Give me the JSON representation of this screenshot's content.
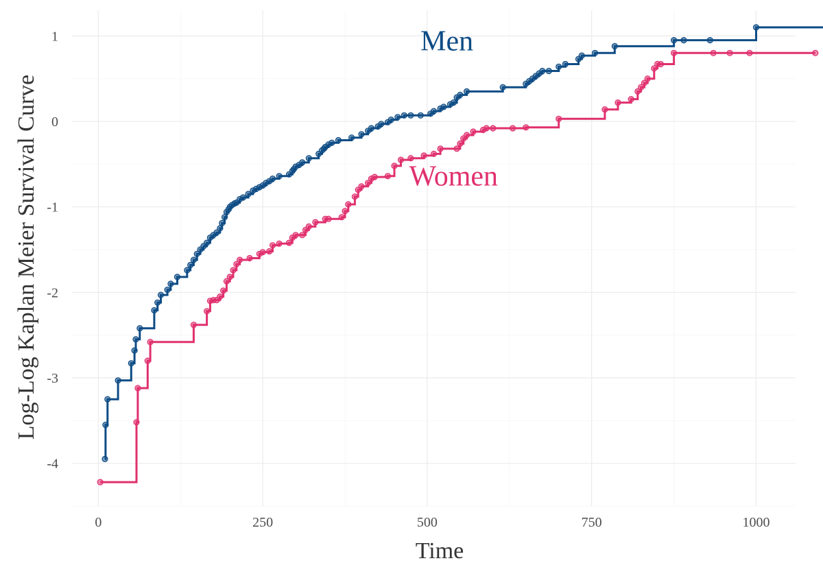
{
  "chart_data": {
    "type": "line",
    "step": true,
    "xlabel": "Time",
    "ylabel": "Log-Log Kaplan Meier Survival Curve",
    "xlim": [
      -40,
      1060
    ],
    "ylim": [
      -4.5,
      1.3
    ],
    "x_ticks": [
      0,
      250,
      500,
      750,
      1000
    ],
    "y_ticks": [
      -4,
      -3,
      -2,
      -1,
      0,
      1
    ],
    "grid": true,
    "legend": "none (series labelled directly on plot)",
    "series": [
      {
        "name": "Men",
        "color": "#0e4c85",
        "label_at": [
          530,
          0.83
        ],
        "points": [
          [
            10,
            -3.95
          ],
          [
            11,
            -3.55
          ],
          [
            14,
            -3.25
          ],
          [
            30,
            -3.03
          ],
          [
            50,
            -2.83
          ],
          [
            55,
            -2.68
          ],
          [
            57,
            -2.55
          ],
          [
            63,
            -2.42
          ],
          [
            85,
            -2.21
          ],
          [
            90,
            -2.12
          ],
          [
            95,
            -2.03
          ],
          [
            105,
            -1.97
          ],
          [
            110,
            -1.9
          ],
          [
            120,
            -1.82
          ],
          [
            135,
            -1.74
          ],
          [
            140,
            -1.68
          ],
          [
            145,
            -1.62
          ],
          [
            150,
            -1.55
          ],
          [
            155,
            -1.5
          ],
          [
            160,
            -1.46
          ],
          [
            165,
            -1.42
          ],
          [
            170,
            -1.36
          ],
          [
            175,
            -1.33
          ],
          [
            180,
            -1.3
          ],
          [
            185,
            -1.25
          ],
          [
            188,
            -1.19
          ],
          [
            192,
            -1.12
          ],
          [
            195,
            -1.06
          ],
          [
            198,
            -1.03
          ],
          [
            200,
            -1.0
          ],
          [
            203,
            -0.98
          ],
          [
            207,
            -0.96
          ],
          [
            210,
            -0.95
          ],
          [
            215,
            -0.91
          ],
          [
            220,
            -0.89
          ],
          [
            228,
            -0.85
          ],
          [
            235,
            -0.81
          ],
          [
            240,
            -0.79
          ],
          [
            245,
            -0.77
          ],
          [
            250,
            -0.75
          ],
          [
            255,
            -0.72
          ],
          [
            260,
            -0.7
          ],
          [
            265,
            -0.67
          ],
          [
            275,
            -0.64
          ],
          [
            290,
            -0.62
          ],
          [
            295,
            -0.58
          ],
          [
            297,
            -0.56
          ],
          [
            300,
            -0.53
          ],
          [
            305,
            -0.51
          ],
          [
            310,
            -0.48
          ],
          [
            320,
            -0.43
          ],
          [
            335,
            -0.38
          ],
          [
            340,
            -0.34
          ],
          [
            343,
            -0.32
          ],
          [
            345,
            -0.3
          ],
          [
            350,
            -0.27
          ],
          [
            355,
            -0.25
          ],
          [
            365,
            -0.22
          ],
          [
            385,
            -0.19
          ],
          [
            400,
            -0.15
          ],
          [
            410,
            -0.11
          ],
          [
            415,
            -0.08
          ],
          [
            425,
            -0.06
          ],
          [
            430,
            -0.03
          ],
          [
            440,
            -0.01
          ],
          [
            445,
            0.02
          ],
          [
            455,
            0.05
          ],
          [
            465,
            0.07
          ],
          [
            475,
            0.07
          ],
          [
            490,
            0.07
          ],
          [
            505,
            0.09
          ],
          [
            510,
            0.12
          ],
          [
            520,
            0.15
          ],
          [
            525,
            0.17
          ],
          [
            535,
            0.2
          ],
          [
            540,
            0.22
          ],
          [
            545,
            0.28
          ],
          [
            550,
            0.31
          ],
          [
            560,
            0.35
          ],
          [
            615,
            0.4
          ],
          [
            650,
            0.44
          ],
          [
            655,
            0.47
          ],
          [
            660,
            0.5
          ],
          [
            665,
            0.53
          ],
          [
            670,
            0.56
          ],
          [
            675,
            0.59
          ],
          [
            685,
            0.59
          ],
          [
            700,
            0.64
          ],
          [
            710,
            0.67
          ],
          [
            730,
            0.73
          ],
          [
            735,
            0.77
          ],
          [
            755,
            0.8
          ],
          [
            785,
            0.88
          ],
          [
            875,
            0.95
          ],
          [
            890,
            0.95
          ],
          [
            930,
            0.95
          ],
          [
            1000,
            1.1
          ],
          [
            1110,
            1.1
          ],
          [
            1120,
            1.1
          ]
        ]
      },
      {
        "name": "Women",
        "color": "#e0306e",
        "label_at": [
          540,
          -0.75
        ],
        "points": [
          [
            3,
            -4.22
          ],
          [
            58,
            -3.52
          ],
          [
            60,
            -3.12
          ],
          [
            75,
            -2.8
          ],
          [
            79,
            -2.58
          ],
          [
            145,
            -2.38
          ],
          [
            165,
            -2.22
          ],
          [
            170,
            -2.1
          ],
          [
            175,
            -2.09
          ],
          [
            180,
            -2.09
          ],
          [
            185,
            -2.05
          ],
          [
            190,
            -1.98
          ],
          [
            195,
            -1.87
          ],
          [
            200,
            -1.82
          ],
          [
            205,
            -1.74
          ],
          [
            210,
            -1.67
          ],
          [
            215,
            -1.62
          ],
          [
            230,
            -1.6
          ],
          [
            245,
            -1.55
          ],
          [
            250,
            -1.53
          ],
          [
            260,
            -1.52
          ],
          [
            265,
            -1.45
          ],
          [
            275,
            -1.43
          ],
          [
            290,
            -1.42
          ],
          [
            295,
            -1.36
          ],
          [
            300,
            -1.33
          ],
          [
            310,
            -1.33
          ],
          [
            315,
            -1.27
          ],
          [
            320,
            -1.23
          ],
          [
            330,
            -1.18
          ],
          [
            345,
            -1.14
          ],
          [
            350,
            -1.14
          ],
          [
            370,
            -1.12
          ],
          [
            375,
            -1.05
          ],
          [
            380,
            -0.97
          ],
          [
            390,
            -0.88
          ],
          [
            395,
            -0.8
          ],
          [
            400,
            -0.76
          ],
          [
            410,
            -0.72
          ],
          [
            415,
            -0.67
          ],
          [
            420,
            -0.65
          ],
          [
            440,
            -0.64
          ],
          [
            450,
            -0.52
          ],
          [
            460,
            -0.45
          ],
          [
            475,
            -0.43
          ],
          [
            495,
            -0.4
          ],
          [
            510,
            -0.38
          ],
          [
            520,
            -0.32
          ],
          [
            545,
            -0.32
          ],
          [
            550,
            -0.26
          ],
          [
            555,
            -0.2
          ],
          [
            560,
            -0.16
          ],
          [
            570,
            -0.12
          ],
          [
            585,
            -0.1
          ],
          [
            590,
            -0.08
          ],
          [
            600,
            -0.08
          ],
          [
            630,
            -0.08
          ],
          [
            650,
            -0.07
          ],
          [
            700,
            0.03
          ],
          [
            770,
            0.14
          ],
          [
            790,
            0.22
          ],
          [
            810,
            0.26
          ],
          [
            820,
            0.35
          ],
          [
            825,
            0.4
          ],
          [
            830,
            0.45
          ],
          [
            835,
            0.5
          ],
          [
            845,
            0.62
          ],
          [
            850,
            0.67
          ],
          [
            855,
            0.67
          ],
          [
            875,
            0.8
          ],
          [
            935,
            0.8
          ],
          [
            960,
            0.8
          ],
          [
            990,
            0.8
          ],
          [
            1090,
            0.8
          ]
        ]
      }
    ]
  }
}
